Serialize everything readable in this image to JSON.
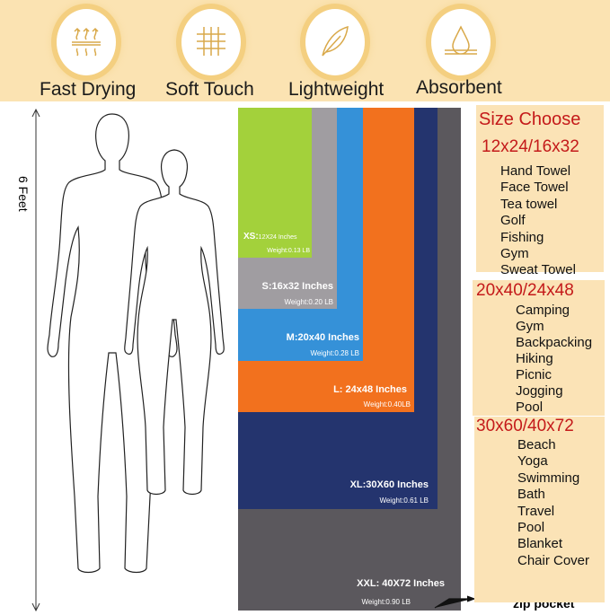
{
  "features": [
    {
      "label": "Fast Drying",
      "icon": "heat-waves-icon"
    },
    {
      "label": "Soft Touch",
      "icon": "fabric-weave-icon"
    },
    {
      "label": "Lightweight",
      "icon": "feather-icon"
    },
    {
      "label": "Absorbent",
      "icon": "water-drop-icon"
    }
  ],
  "height_label": "6 Feet",
  "sizes": [
    {
      "label": "XS:",
      "dims": "12X24 Inches",
      "weight": "Weight:0.13 LB",
      "color": "#a3d13b"
    },
    {
      "label": "S:16x32 Inches",
      "weight": "Weight:0.20 LB",
      "color": "#a09da1"
    },
    {
      "label": "M:20x40 Inches",
      "weight": "Weight:0.28 LB",
      "color": "#3591d8"
    },
    {
      "label": "L: 24x48 Inches",
      "weight": "Weight:0.40LB",
      "color": "#f2711e"
    },
    {
      "label": "XL:30X60 Inches",
      "weight": "Weight:0.61 LB",
      "color": "#24346e"
    },
    {
      "label": "XXL: 40X72 Inches",
      "weight": "Weight:0.90 LB",
      "color": "#5b585d"
    }
  ],
  "zip_pocket": "zip pocket",
  "size_choose": {
    "title": "Size Choose",
    "groups": [
      {
        "heading": "12x24/16x32",
        "items": [
          "Hand Towel",
          "Face Towel",
          "Tea towel",
          "Golf",
          "Fishing",
          "Gym",
          "Sweat Towel"
        ]
      },
      {
        "heading": "20x40/24x48",
        "items": [
          "Camping",
          "Gym",
          "Backpacking",
          "Hiking",
          "Picnic",
          "Jogging",
          "Pool"
        ]
      },
      {
        "heading": "30x60/40x72",
        "items": [
          "Beach",
          "Yoga",
          "Swimming",
          "Bath",
          "Travel",
          "Pool",
          "Blanket",
          "Chair Cover"
        ]
      }
    ]
  }
}
